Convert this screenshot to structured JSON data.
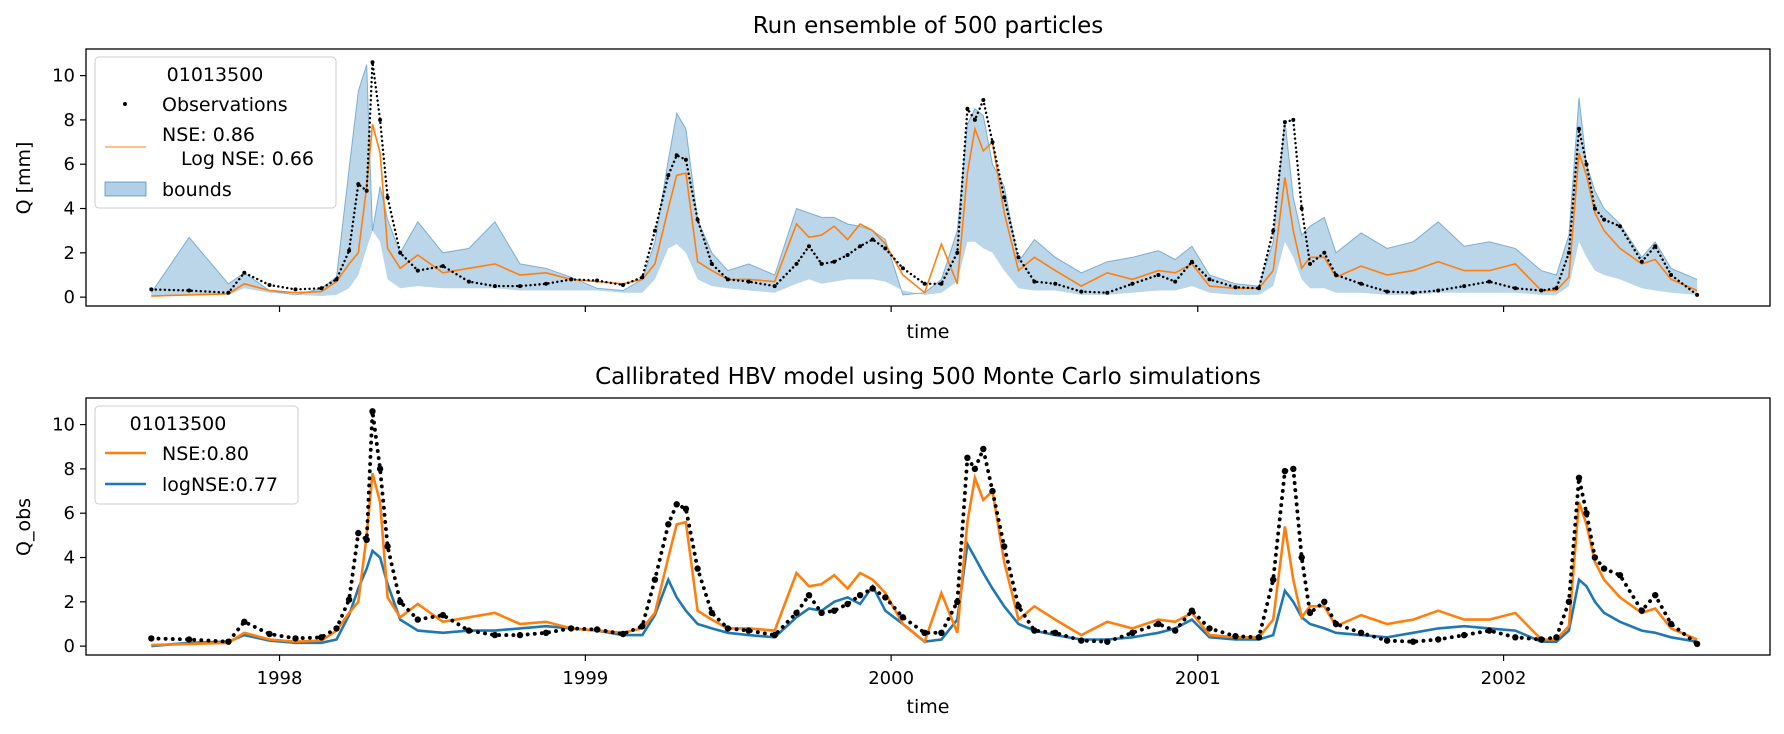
{
  "chart_data": [
    {
      "type": "line",
      "title": "Run ensemble of 500 particles",
      "xlabel": "time",
      "ylabel": "Q [mm]",
      "ylim": [
        -0.4,
        11.2
      ],
      "yticks": [
        0,
        2,
        4,
        6,
        8,
        10
      ],
      "xticks_shown": false,
      "grid": false,
      "legend": {
        "placement": "upper-left",
        "title": "01013500",
        "entries": [
          "Observations",
          "NSE: 0.86\n   Log NSE: 0.66",
          "bounds"
        ],
        "line1": "NSE: 0.86",
        "line2": "Log NSE: 0.66"
      },
      "colors": {
        "observations": "#000000",
        "ensemble": "#ff7f0e",
        "bounds": "#1f77b4"
      },
      "series": [
        {
          "name": "Observations",
          "kind": "scatter",
          "ref": "obs"
        },
        {
          "name": "NSE: 0.86\n   Log NSE: 0.66",
          "kind": "line",
          "ref": "nse"
        },
        {
          "name": "bounds",
          "kind": "band",
          "lower_ref": "lower",
          "upper_ref": "upper_ens"
        }
      ]
    },
    {
      "type": "line",
      "title": "Callibrated HBV model using 500 Monte Carlo simulations",
      "xlabel": "time",
      "ylabel": "Q_obs",
      "ylim": [
        -0.4,
        11.2
      ],
      "yticks": [
        0,
        2,
        4,
        6,
        8,
        10
      ],
      "xticks": [
        "1998",
        "1999",
        "2000",
        "2001",
        "2002"
      ],
      "grid": false,
      "legend": {
        "placement": "upper-left",
        "title": "01013500",
        "entries": [
          "NSE:0.80",
          "logNSE:0.77"
        ]
      },
      "colors": {
        "observations": "#000000",
        "nse": "#ff7f0e",
        "lognse": "#1f77b4"
      },
      "series": [
        {
          "kind": "scatter",
          "ref": "obs"
        },
        {
          "name": "NSE:0.80",
          "kind": "line",
          "ref": "nse"
        },
        {
          "name": "logNSE:0.77",
          "kind": "line",
          "ref": "lognse"
        }
      ]
    }
  ],
  "x_range": [
    "1997-05-15",
    "2002-11-15"
  ],
  "timeseries": {
    "dates": [
      "1997-08-01",
      "1997-09-15",
      "1997-11-01",
      "1997-11-20",
      "1997-12-20",
      "1998-01-20",
      "1998-02-20",
      "1998-03-10",
      "1998-03-25",
      "1998-04-05",
      "1998-04-15",
      "1998-04-22",
      "1998-05-01",
      "1998-05-10",
      "1998-05-25",
      "1998-06-15",
      "1998-07-15",
      "1998-08-15",
      "1998-09-15",
      "1998-10-15",
      "1998-11-15",
      "1998-12-15",
      "1999-01-15",
      "1999-02-15",
      "1999-03-10",
      "1999-03-25",
      "1999-04-10",
      "1999-04-20",
      "1999-05-01",
      "1999-05-15",
      "1999-06-01",
      "1999-06-20",
      "1999-07-15",
      "1999-08-15",
      "1999-09-10",
      "1999-09-25",
      "1999-10-10",
      "1999-10-25",
      "1999-11-10",
      "1999-11-25",
      "1999-12-10",
      "1999-12-25",
      "2000-01-15",
      "2000-02-10",
      "2000-03-01",
      "2000-03-20",
      "2000-04-01",
      "2000-04-10",
      "2000-04-20",
      "2000-05-01",
      "2000-05-15",
      "2000-06-01",
      "2000-06-20",
      "2000-07-15",
      "2000-08-15",
      "2000-09-15",
      "2000-10-15",
      "2000-11-15",
      "2000-12-05",
      "2000-12-25",
      "2001-01-15",
      "2001-02-15",
      "2001-03-15",
      "2001-04-01",
      "2001-04-15",
      "2001-04-25",
      "2001-05-05",
      "2001-05-15",
      "2001-06-01",
      "2001-06-15",
      "2001-07-15",
      "2001-08-15",
      "2001-09-15",
      "2001-10-15",
      "2001-11-15",
      "2001-12-15",
      "2002-01-15",
      "2002-02-15",
      "2002-03-05",
      "2002-03-20",
      "2002-04-01",
      "2002-04-10",
      "2002-04-20",
      "2002-05-01",
      "2002-05-20",
      "2002-06-15",
      "2002-07-01",
      "2002-07-20",
      "2002-08-20"
    ],
    "obs": [
      0.35,
      0.3,
      0.2,
      1.1,
      0.55,
      0.35,
      0.4,
      0.8,
      2.1,
      5.1,
      4.8,
      10.6,
      8.0,
      4.5,
      2.0,
      1.2,
      1.4,
      0.7,
      0.5,
      0.5,
      0.6,
      0.8,
      0.75,
      0.55,
      0.9,
      3.0,
      5.5,
      6.4,
      6.2,
      3.5,
      1.5,
      0.8,
      0.7,
      0.5,
      1.5,
      2.3,
      1.5,
      1.6,
      1.9,
      2.3,
      2.6,
      2.2,
      1.3,
      0.6,
      0.6,
      2.0,
      8.5,
      8.0,
      8.9,
      7.0,
      4.5,
      1.8,
      0.7,
      0.6,
      0.25,
      0.2,
      0.6,
      1.0,
      0.7,
      1.6,
      0.8,
      0.45,
      0.4,
      3.0,
      7.9,
      8.0,
      4.0,
      1.5,
      2.0,
      1.0,
      0.6,
      0.25,
      0.2,
      0.3,
      0.5,
      0.7,
      0.4,
      0.3,
      0.4,
      2.0,
      7.6,
      6.0,
      4.0,
      3.5,
      3.2,
      1.6,
      2.3,
      1.0,
      0.1
    ],
    "nse": [
      0.05,
      0.1,
      0.15,
      0.6,
      0.3,
      0.2,
      0.25,
      0.7,
      1.5,
      2.0,
      5.0,
      7.8,
      6.5,
      2.2,
      1.3,
      1.9,
      1.1,
      1.3,
      1.5,
      1.0,
      1.1,
      0.8,
      0.7,
      0.6,
      0.8,
      1.5,
      4.0,
      5.5,
      5.6,
      1.6,
      1.2,
      0.8,
      0.8,
      0.7,
      3.3,
      2.7,
      2.8,
      3.2,
      2.6,
      3.3,
      3.0,
      2.4,
      1.0,
      0.2,
      2.4,
      0.6,
      5.6,
      7.6,
      6.6,
      7.0,
      3.8,
      1.2,
      1.8,
      1.2,
      0.5,
      1.1,
      0.8,
      1.2,
      1.1,
      1.5,
      0.5,
      0.4,
      0.4,
      1.2,
      5.4,
      3.0,
      1.3,
      1.8,
      1.8,
      0.9,
      1.4,
      1.0,
      1.2,
      1.6,
      1.2,
      1.2,
      1.5,
      0.3,
      0.3,
      0.9,
      6.5,
      5.5,
      3.8,
      3.0,
      2.2,
      1.5,
      1.7,
      0.8,
      0.3
    ],
    "lognse": [
      0.0,
      0.15,
      0.2,
      0.5,
      0.25,
      0.15,
      0.15,
      0.3,
      1.4,
      2.6,
      3.5,
      4.3,
      4.0,
      2.8,
      1.2,
      0.7,
      0.6,
      0.7,
      0.7,
      0.8,
      0.9,
      0.8,
      0.7,
      0.5,
      0.5,
      1.4,
      3.0,
      2.2,
      1.6,
      1.0,
      0.8,
      0.6,
      0.5,
      0.4,
      1.3,
      1.7,
      1.6,
      2.0,
      2.2,
      1.9,
      2.7,
      1.6,
      1.0,
      0.2,
      0.3,
      1.2,
      4.6,
      4.0,
      3.3,
      2.6,
      1.8,
      1.0,
      0.7,
      0.5,
      0.3,
      0.3,
      0.4,
      0.6,
      0.8,
      1.2,
      0.4,
      0.3,
      0.3,
      0.5,
      2.5,
      2.0,
      1.3,
      1.0,
      0.8,
      0.6,
      0.5,
      0.4,
      0.6,
      0.8,
      0.9,
      0.8,
      0.7,
      0.2,
      0.2,
      0.7,
      3.0,
      2.7,
      2.0,
      1.5,
      1.1,
      0.7,
      0.6,
      0.4,
      0.2
    ],
    "upper_ens": [
      0.2,
      2.7,
      0.6,
      1.1,
      0.3,
      0.1,
      0.4,
      0.9,
      5.8,
      9.3,
      10.5,
      3.0,
      5.0,
      3.5,
      2.0,
      3.4,
      2.0,
      2.2,
      3.4,
      1.5,
      1.3,
      0.9,
      0.4,
      0.3,
      0.8,
      2.5,
      6.2,
      8.3,
      7.6,
      3.5,
      2.0,
      1.2,
      1.5,
      1.0,
      4.0,
      3.8,
      3.6,
      3.6,
      3.3,
      3.2,
      3.0,
      2.6,
      0.1,
      0.2,
      0.8,
      3.0,
      7.8,
      8.5,
      8.2,
      6.0,
      5.0,
      1.6,
      2.6,
      1.8,
      1.1,
      1.6,
      1.8,
      2.1,
      1.7,
      2.3,
      1.0,
      0.6,
      0.5,
      2.5,
      8.0,
      4.5,
      2.8,
      3.2,
      3.6,
      2.0,
      2.9,
      2.2,
      2.5,
      3.4,
      2.3,
      2.5,
      2.2,
      1.2,
      1.0,
      2.8,
      9.0,
      6.0,
      4.8,
      4.0,
      3.3,
      1.8,
      2.5,
      1.3,
      0.8
    ],
    "lower": [
      0.0,
      0.1,
      0.1,
      0.4,
      0.2,
      0.1,
      0.05,
      0.1,
      0.4,
      1.0,
      2.2,
      3.0,
      2.5,
      0.8,
      0.4,
      0.5,
      0.4,
      0.4,
      0.4,
      0.3,
      0.3,
      0.3,
      0.3,
      0.2,
      0.2,
      0.8,
      2.2,
      2.4,
      2.0,
      0.8,
      0.5,
      0.4,
      0.3,
      0.2,
      0.6,
      0.8,
      0.6,
      0.7,
      0.8,
      0.8,
      0.8,
      0.7,
      0.3,
      0.1,
      0.2,
      0.7,
      2.5,
      2.5,
      2.2,
      2.0,
      1.2,
      0.4,
      0.3,
      0.3,
      0.1,
      0.1,
      0.2,
      0.3,
      0.3,
      0.5,
      0.2,
      0.1,
      0.1,
      0.5,
      2.5,
      1.8,
      0.8,
      0.4,
      0.4,
      0.2,
      0.2,
      0.1,
      0.1,
      0.2,
      0.2,
      0.2,
      0.2,
      0.1,
      0.1,
      0.5,
      2.5,
      1.8,
      1.2,
      1.0,
      0.8,
      0.4,
      0.3,
      0.2,
      0.1
    ]
  }
}
